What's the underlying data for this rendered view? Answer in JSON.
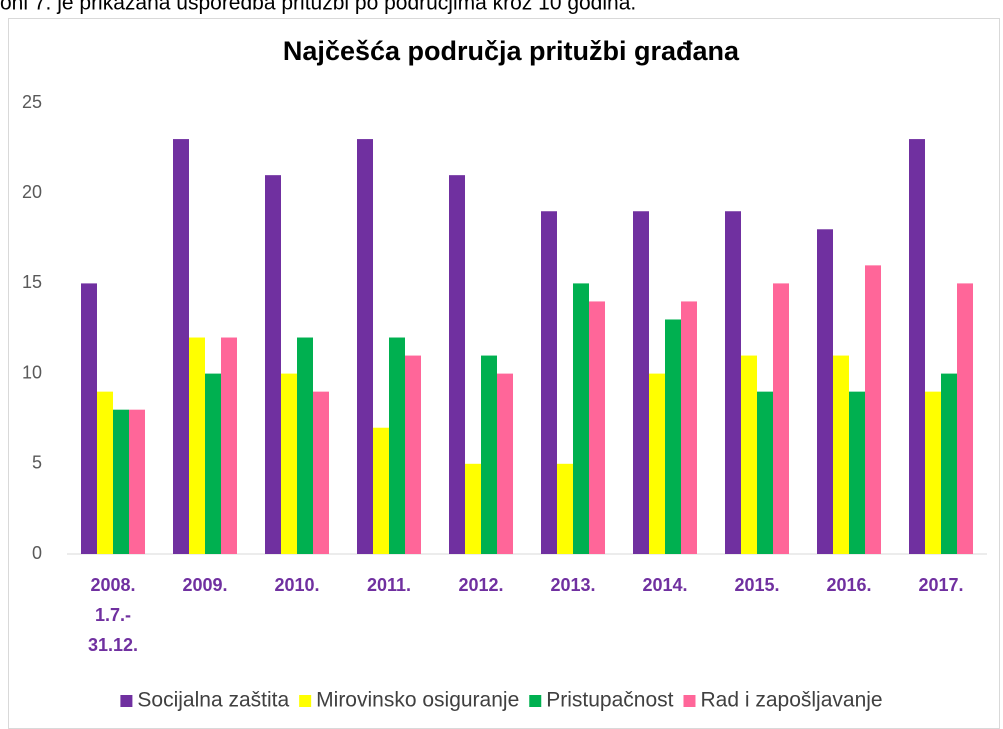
{
  "caption": "oni 7. je prikazana usporedba pritužbi po područjima kroz 10 godina.",
  "chart_data": {
    "type": "bar",
    "title": "Najčešća područja pritužbi građana",
    "categories": [
      [
        "2008.",
        "1.7.-",
        "31.12."
      ],
      [
        "2009."
      ],
      [
        "2010."
      ],
      [
        "2011."
      ],
      [
        "2012."
      ],
      [
        "2013."
      ],
      [
        "2014."
      ],
      [
        "2015."
      ],
      [
        "2016."
      ],
      [
        "2017."
      ]
    ],
    "series": [
      {
        "name": "Socijalna zaštita",
        "color": "#7030a0",
        "values": [
          15,
          23,
          21,
          23,
          21,
          19,
          19,
          19,
          18,
          23
        ]
      },
      {
        "name": "Mirovinsko osiguranje",
        "color": "#ffff00",
        "values": [
          9,
          12,
          10,
          7,
          5,
          5,
          10,
          11,
          11,
          9
        ]
      },
      {
        "name": "Pristupačnost",
        "color": "#00b050",
        "values": [
          8,
          10,
          12,
          12,
          11,
          15,
          13,
          9,
          9,
          10
        ]
      },
      {
        "name": "Rad i zapošljavanje",
        "color": "#ff6699",
        "values": [
          8,
          12,
          9,
          11,
          10,
          14,
          14,
          15,
          16,
          15
        ]
      }
    ],
    "ylim": [
      0,
      25
    ],
    "yticks": [
      0,
      5,
      10,
      15,
      20,
      25
    ],
    "grid": false,
    "legend": "bottom"
  }
}
